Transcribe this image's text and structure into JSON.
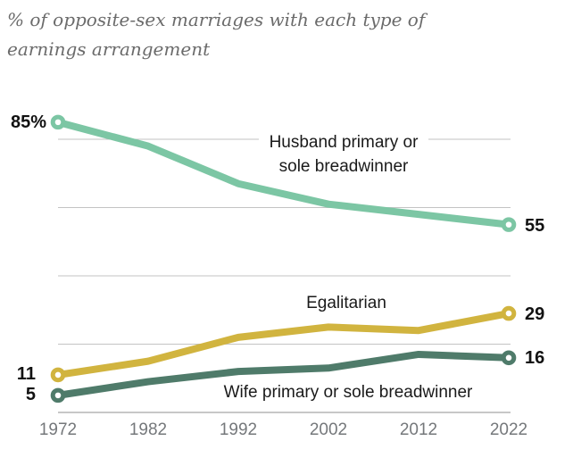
{
  "title": {
    "text": "% of opposite-sex marriages with each type of earnings arrangement"
  },
  "chart_data": {
    "type": "line",
    "title": "% of opposite-sex marriages with each type of earnings arrangement",
    "categories": [
      "1972",
      "1982",
      "1992",
      "2002",
      "2012",
      "2022"
    ],
    "series": [
      {
        "name": "Husband primary or sole breadwinner",
        "color": "#7cc6a4",
        "values": [
          85,
          78,
          67,
          61,
          58,
          55
        ],
        "start_label": "85%",
        "end_label": "55"
      },
      {
        "name": "Egalitarian",
        "color": "#d1b43f",
        "values": [
          11,
          15,
          22,
          25,
          24,
          29
        ],
        "start_label": "11",
        "end_label": "29"
      },
      {
        "name": "Wife primary or sole breadwinner",
        "color": "#4f7b6a",
        "values": [
          5,
          9,
          12,
          13,
          17,
          16
        ],
        "start_label": "5",
        "end_label": "16"
      }
    ],
    "ylim": [
      0,
      88
    ],
    "yticks": [
      0,
      20,
      40,
      60,
      80
    ],
    "grid": true,
    "grid_color": "#c3c3c3",
    "axis_color": "#8f8f8f",
    "tick_label_color": "#75787b",
    "legend": "inline-annotations",
    "value_labels": "endpoints-only"
  }
}
